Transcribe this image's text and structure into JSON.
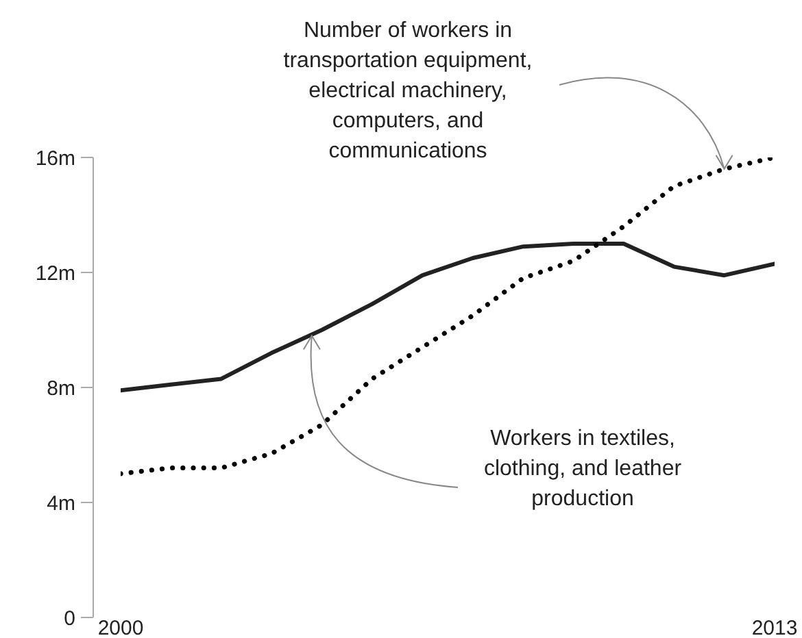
{
  "chart_data": {
    "type": "line",
    "x": [
      2000,
      2001,
      2002,
      2003,
      2004,
      2005,
      2006,
      2007,
      2008,
      2009,
      2010,
      2011,
      2012,
      2013
    ],
    "xlim": [
      2000,
      2013
    ],
    "xticks": [
      2000,
      2013
    ],
    "ylim": [
      0,
      16
    ],
    "yticks": [
      0,
      {
        "value": 4,
        "label": "4m"
      },
      {
        "value": 8,
        "label": "8m"
      },
      {
        "value": 12,
        "label": "12m"
      },
      {
        "value": 16,
        "label": "16m"
      }
    ],
    "marker": "none",
    "series": [
      {
        "color": "#222222",
        "line_style": "solid",
        "values": [
          7.9,
          8.1,
          8.3,
          9.2,
          10.0,
          10.9,
          11.9,
          12.5,
          12.9,
          13.0,
          13.0,
          12.2,
          11.9,
          12.3
        ]
      },
      {
        "color": "#000000",
        "line_style": "dotted",
        "values": [
          5.0,
          5.2,
          5.2,
          5.7,
          6.7,
          8.3,
          9.4,
          10.5,
          11.8,
          12.4,
          13.6,
          15.0,
          15.6,
          16.0
        ]
      }
    ],
    "annotations": [
      {
        "text": "Workers in textiles, clothing, and leather production",
        "x": 2003.8,
        "y": 9.8
      },
      {
        "text": "Number of workers in transportation equipment, electrical machinery, computers, and communications",
        "x": 2012,
        "y": 15.6
      }
    ]
  }
}
